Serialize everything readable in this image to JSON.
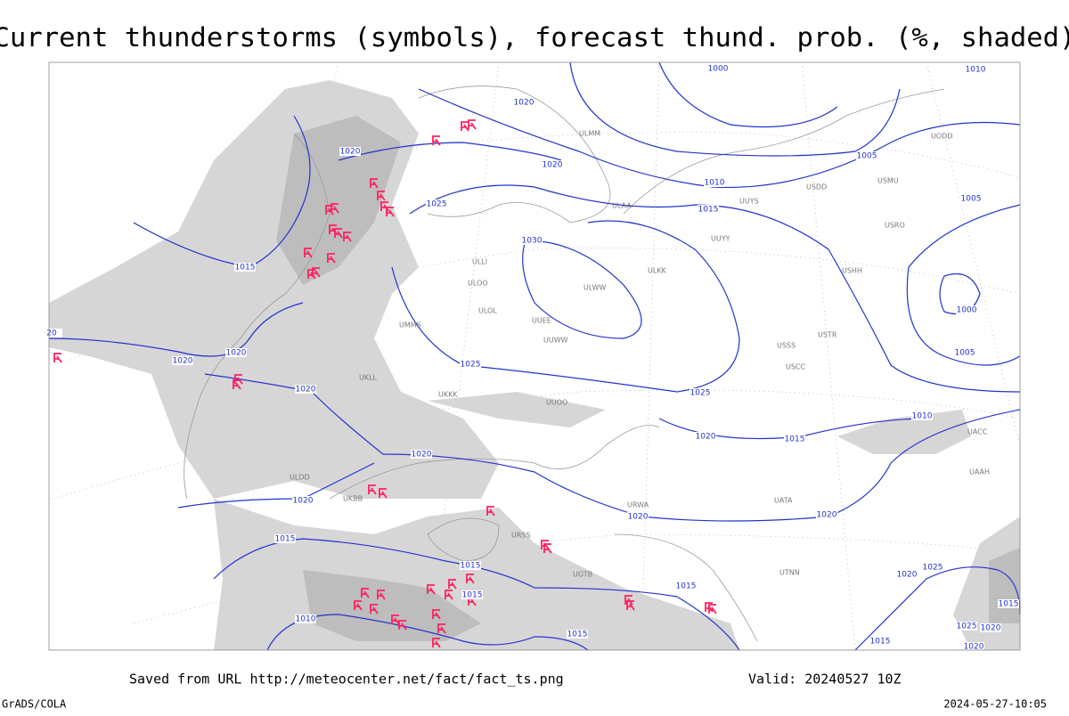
{
  "header": {
    "title": "Current thunderstorms (symbols), forecast thund. prob. (%, shaded)"
  },
  "map": {
    "isobar_labels": [
      "1020",
      "1020",
      "1020",
      "1025",
      "1030",
      "1015",
      "1010",
      "1015",
      "1005",
      "1005",
      "1000",
      "1010",
      "1000",
      "1005",
      "1020",
      "1020",
      "1020",
      "1025",
      "1025",
      "1020",
      "1015",
      "1010",
      "1020",
      "1020",
      "1020",
      "1020",
      "1015",
      "1015",
      "1015",
      "1015",
      "1015",
      "1010",
      "1025",
      "1020",
      "1015",
      "1025",
      "1020",
      "1015",
      "1020",
      "20"
    ],
    "station_labels": [
      "ULMM",
      "ULOO",
      "UODD",
      "ULAA",
      "UUYS",
      "USDD",
      "USMU",
      "ULLI",
      "UUYY",
      "ULKK",
      "ULWW",
      "USHH",
      "USRO",
      "UUEE",
      "USSS",
      "USCC",
      "USTR",
      "UUOO",
      "ULOL",
      "UUWW",
      "UMMS",
      "UKKK",
      "UKLL",
      "ULDD",
      "UKBB",
      "URSS",
      "UGTB",
      "URWA",
      "UATA",
      "UTNN",
      "UAAH",
      "UACC"
    ]
  },
  "footer": {
    "source": "Saved from URL http://meteocenter.net/fact/fact_ts.png",
    "valid": "Valid: 20240527 10Z",
    "credit": "GrADS/COLA",
    "timestamp": "2024-05-27-10:05"
  }
}
